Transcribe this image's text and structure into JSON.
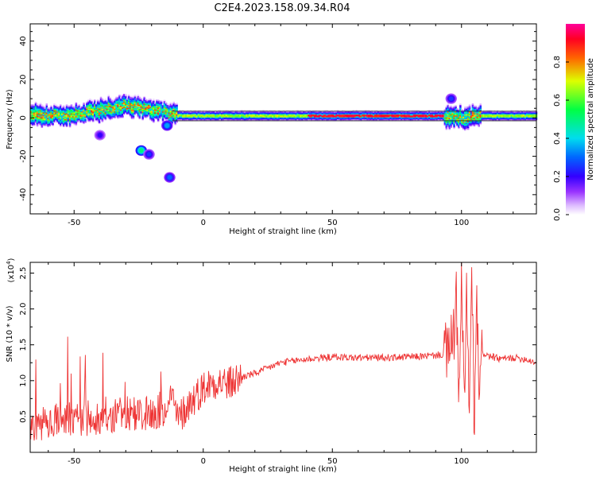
{
  "chart_data": [
    {
      "type": "heatmap",
      "title": "C2E4.2023.158.09.34.R04",
      "xlabel": "Height of straight line (km)",
      "ylabel": "Frequency (Hz)",
      "xlim": [
        -67,
        129
      ],
      "ylim": [
        -50,
        49
      ],
      "xticks": [
        "-50",
        "0",
        "50",
        "100"
      ],
      "yticks": [
        "-40",
        "-20",
        "0",
        "20",
        "40"
      ],
      "colorbar": {
        "label": "Normalized spectral amplitude",
        "range": [
          0,
          1
        ],
        "ticks": [
          "0.0",
          "0.2",
          "0.4",
          "0.6",
          "0.8"
        ],
        "colors": [
          "#ffffff",
          "#cc99ff",
          "#6600ff",
          "#0000ff",
          "#00ccff",
          "#00ff66",
          "#ffff00",
          "#ff6600",
          "#ff0000",
          "#ff0099"
        ]
      },
      "ridge": {
        "x": [
          -67,
          -60,
          -50,
          -40,
          -30,
          -25,
          -20,
          -15,
          -10,
          0,
          20,
          40,
          60,
          80,
          95,
          100,
          105,
          129
        ],
        "y": [
          2,
          1,
          2,
          4,
          6,
          5,
          4,
          3,
          1,
          1,
          1,
          1,
          1,
          1,
          1,
          0,
          1,
          1
        ]
      },
      "blobs": [
        {
          "x": -24,
          "y": -17,
          "amp": 0.5
        },
        {
          "x": -21,
          "y": -19,
          "amp": 0.25
        },
        {
          "x": -13,
          "y": -31,
          "amp": 0.3
        },
        {
          "x": 96,
          "y": 10,
          "amp": 0.25
        },
        {
          "x": -40,
          "y": -9,
          "amp": 0.2
        },
        {
          "x": -14,
          "y": -4,
          "amp": 0.35
        }
      ]
    },
    {
      "type": "line",
      "title": "",
      "xlabel": "Height of straight line (km)",
      "ylabel": "SNR (10 * v/v)",
      "y_multiplier": "(x10",
      "y_multiplier_exp": "4",
      "y_multiplier_close": ")",
      "xlim": [
        -67,
        129
      ],
      "ylim": [
        0,
        2.65
      ],
      "xticks": [
        "-50",
        "0",
        "50",
        "100"
      ],
      "yticks": [
        "0.5",
        "1.0",
        "1.5",
        "2.0",
        "2.5"
      ],
      "color": "#ee3333",
      "x": [
        -67,
        -60,
        -50,
        -40,
        -30,
        -20,
        -15,
        -13,
        -10,
        -5,
        0,
        5,
        10,
        15,
        20,
        30,
        40,
        50,
        60,
        70,
        80,
        90,
        95,
        97,
        98,
        99,
        100,
        101,
        102,
        103,
        104,
        105,
        106,
        107,
        108,
        110,
        115,
        120,
        125,
        129
      ],
      "y": [
        0.25,
        0.3,
        0.35,
        0.4,
        0.45,
        0.5,
        0.6,
        1.0,
        0.45,
        0.7,
        0.9,
        1.0,
        0.95,
        1.05,
        1.1,
        1.25,
        1.3,
        1.33,
        1.32,
        1.32,
        1.33,
        1.35,
        1.38,
        1.6,
        2.3,
        0.4,
        2.6,
        0.5,
        2.4,
        0.35,
        2.5,
        0.2,
        2.1,
        0.6,
        1.4,
        1.35,
        1.3,
        1.32,
        1.3,
        1.25
      ]
    }
  ]
}
